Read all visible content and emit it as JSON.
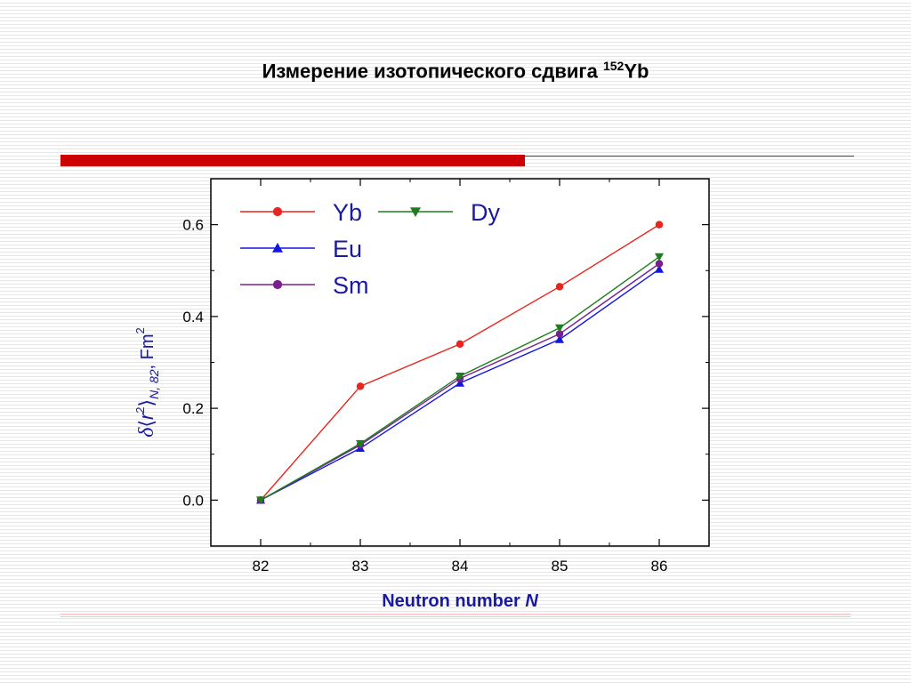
{
  "slide": {
    "title_main": "Измерение изотопического сдвига ",
    "title_sup": "152",
    "title_end": "Yb"
  },
  "colors": {
    "accent_bar": "#cc0000",
    "axis_title": "#1a1aa0"
  },
  "chart_data": {
    "type": "line",
    "x": [
      82,
      83,
      84,
      85,
      86
    ],
    "xlim": [
      81.5,
      86.5
    ],
    "ylim": [
      -0.1,
      0.7
    ],
    "x_ticks": [
      "82",
      "83",
      "84",
      "85",
      "86"
    ],
    "y_ticks": [
      "0.0",
      "0.2",
      "0.4",
      "0.6"
    ],
    "xlabel_main": "Neutron number ",
    "xlabel_var": "N",
    "ylabel": {
      "delta": "δ",
      "lang": "⟨",
      "r": "r",
      "sup2": "2",
      "rang": "⟩",
      "sub": "N, 82",
      "unit": ", Fm",
      "unit_sup": "2"
    },
    "grid": false,
    "legend_position": "top-left",
    "series": [
      {
        "name": "Yb",
        "marker": "circle",
        "color": "#e8251e",
        "values": [
          0.0,
          0.248,
          0.34,
          0.465,
          0.6
        ]
      },
      {
        "name": "Eu",
        "marker": "triangle-up",
        "color": "#1515e0",
        "values": [
          0.0,
          0.113,
          0.255,
          0.35,
          0.503
        ]
      },
      {
        "name": "Sm",
        "marker": "circle",
        "color": "#7b1e91",
        "values": [
          0.0,
          0.12,
          0.265,
          0.362,
          0.515
        ]
      },
      {
        "name": "Dy",
        "marker": "triangle-down",
        "color": "#1e7d1e",
        "values": [
          0.0,
          0.123,
          0.27,
          0.375,
          0.53
        ]
      }
    ]
  }
}
